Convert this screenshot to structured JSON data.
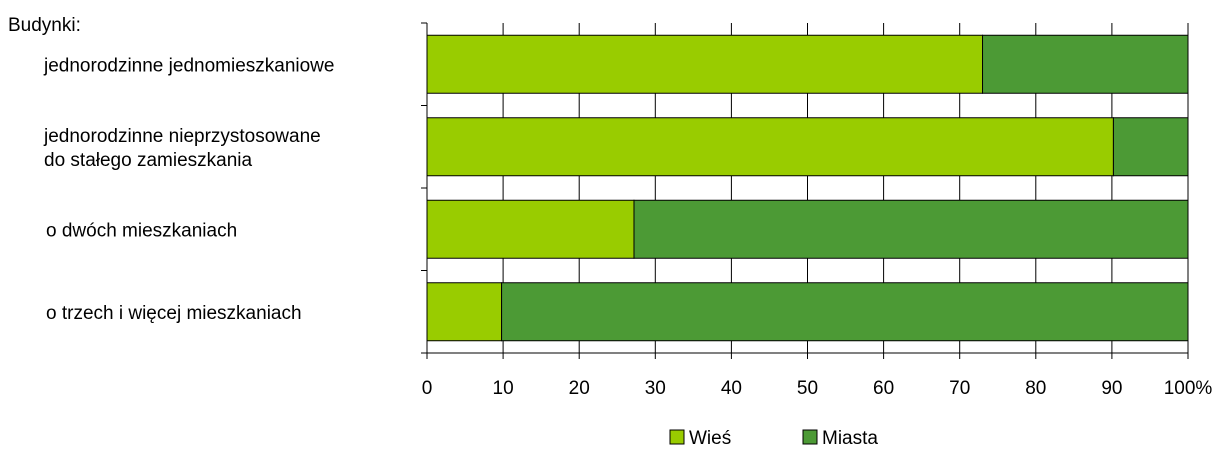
{
  "chart_data": {
    "type": "bar",
    "orientation": "horizontal",
    "stacked": "percent",
    "heading": "Budynki:",
    "categories": [
      [
        "jednorodzinne jednomieszkaniowe"
      ],
      [
        "jednorodzinne nieprzystosowane",
        "do stałego zamieszkania"
      ],
      [
        "o dwóch mieszkaniach"
      ],
      [
        "o trzech i więcej mieszkaniach"
      ]
    ],
    "series": [
      {
        "name": "Wieś",
        "color": "#99cc00",
        "values": [
          73,
          90.2,
          27.2,
          9.8
        ]
      },
      {
        "name": "Miasta",
        "color": "#4c9a35",
        "values": [
          27,
          9.8,
          72.8,
          90.2
        ]
      }
    ],
    "xlim": [
      0,
      100
    ],
    "xticks": [
      "0",
      "10",
      "20",
      "30",
      "40",
      "50",
      "60",
      "70",
      "80",
      "90",
      "100%"
    ],
    "grid": true,
    "legend_position": "bottom"
  }
}
